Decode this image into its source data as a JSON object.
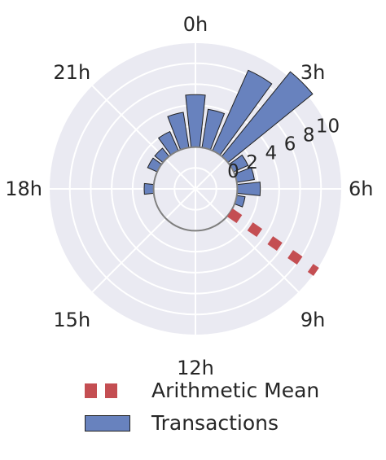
{
  "chart_data": {
    "type": "polar-bar",
    "title": "",
    "theta_labels": [
      "0h",
      "3h",
      "6h",
      "9h",
      "12h",
      "15h",
      "18h",
      "21h"
    ],
    "r_ticks": [
      "0",
      "2",
      "4",
      "6",
      "8",
      "10"
    ],
    "rlim": [
      -4,
      10
    ],
    "r_ring_values": [
      -4,
      -2,
      0,
      2,
      4,
      6,
      8,
      10
    ],
    "grid": true,
    "direction": "clockwise",
    "zero_location": "top",
    "bars": {
      "name": "Transactions",
      "color": "#6882BE",
      "hours": [
        0,
        1,
        2,
        3,
        4,
        5,
        6,
        7,
        8,
        9,
        10,
        11,
        12,
        13,
        14,
        15,
        16,
        17,
        18,
        19,
        20,
        21,
        22,
        23
      ],
      "values": [
        5,
        3.7,
        8.4,
        10.4,
        1.5,
        1.7,
        2.2,
        0.8,
        0,
        0,
        0,
        0,
        0,
        0,
        0,
        0,
        0,
        0,
        0.9,
        0,
        1,
        1,
        2,
        3.4
      ]
    },
    "mean_line": {
      "name": "Arithmetic Mean",
      "color": "#C44E52",
      "hour": 8.3,
      "style": "dashed"
    },
    "legend": {
      "position": "bottom",
      "entries": [
        "Arithmetic Mean",
        "Transactions"
      ]
    }
  }
}
